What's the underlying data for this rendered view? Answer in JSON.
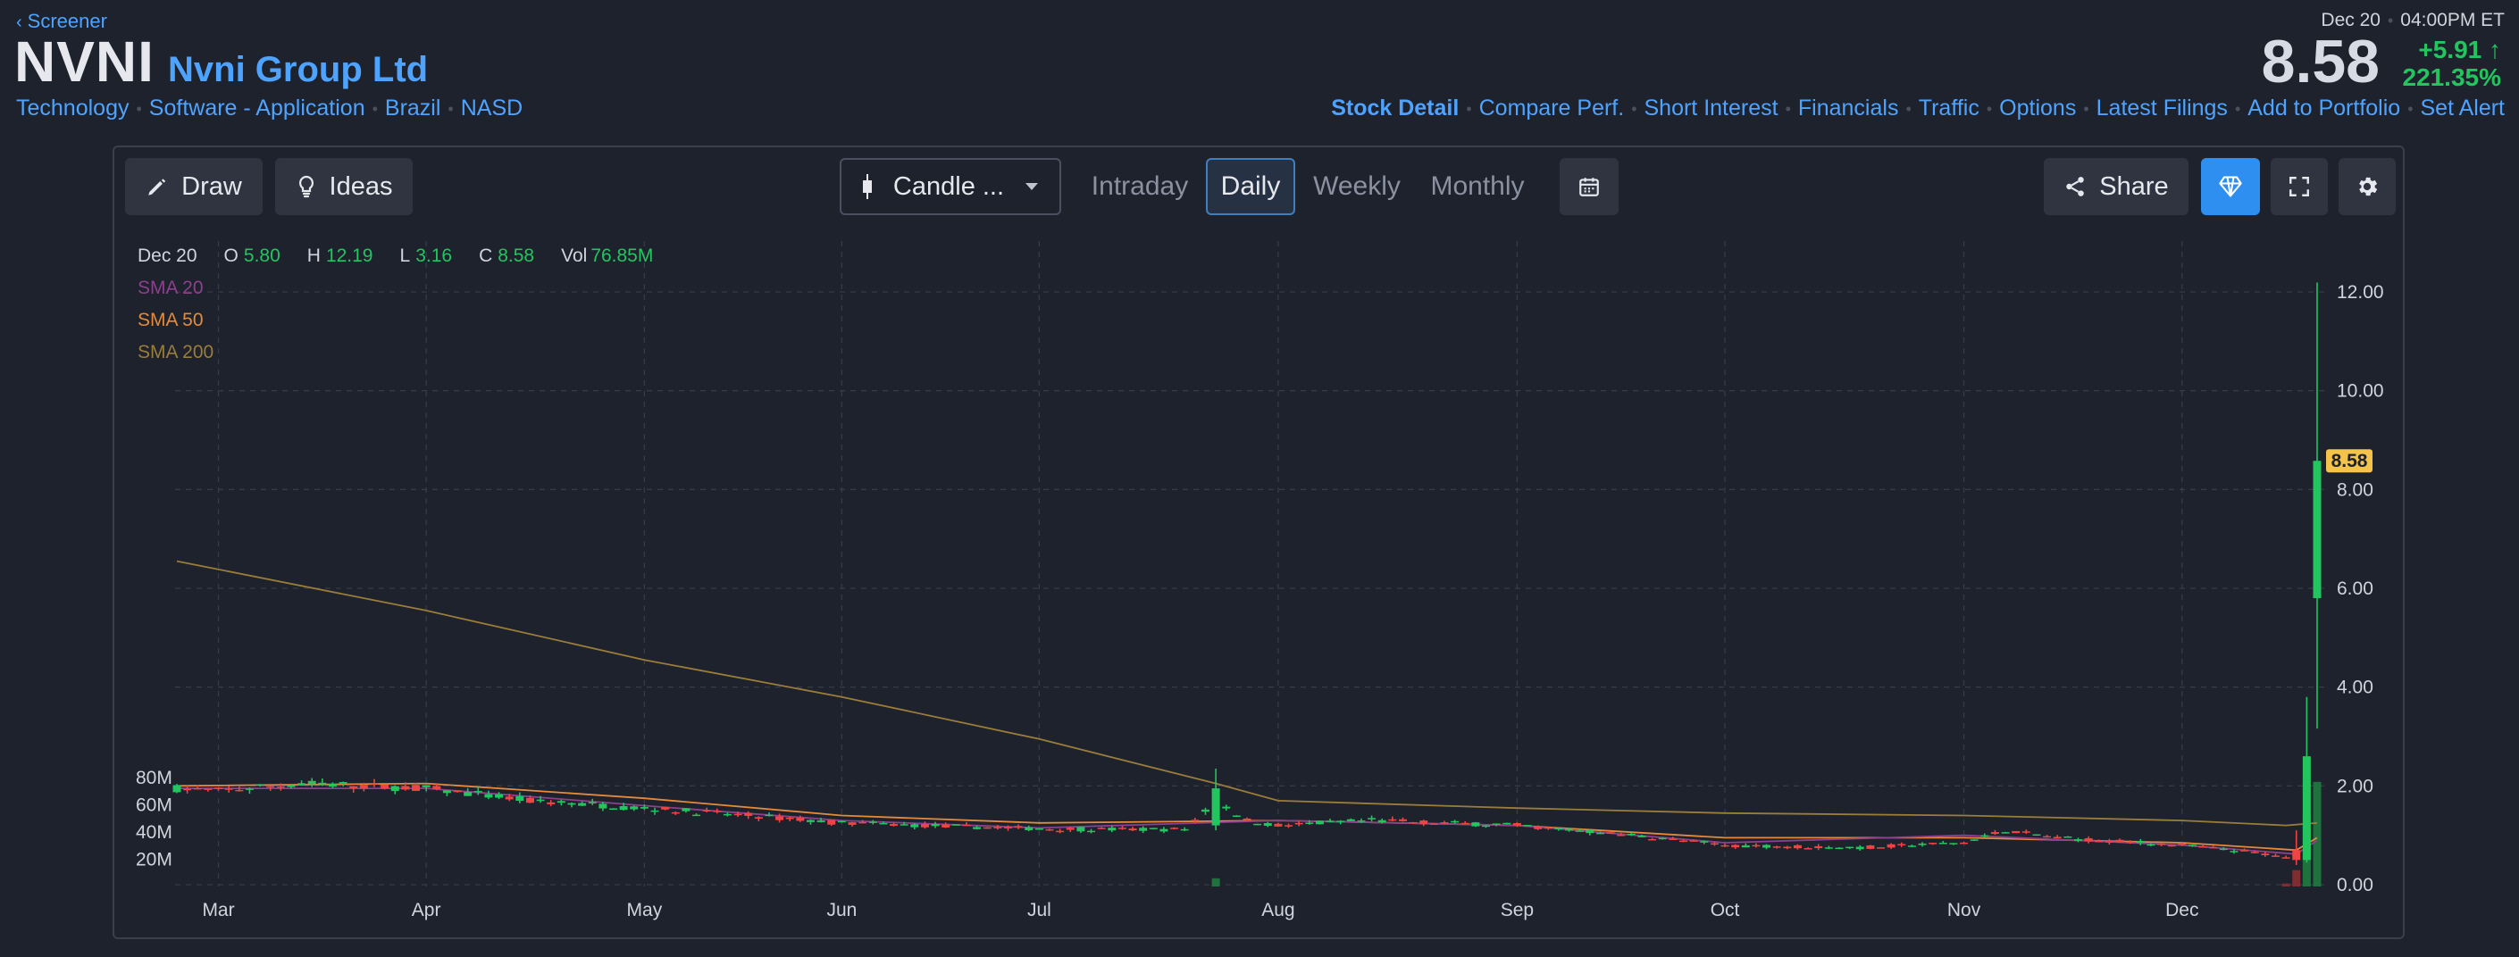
{
  "header": {
    "back_label": "Screener",
    "ticker": "NVNI",
    "company": "Nvni Group Ltd",
    "tags": [
      "Technology",
      "Software - Application",
      "Brazil",
      "NASD"
    ],
    "date": "Dec 20",
    "time": "04:00PM ET",
    "price": "8.58",
    "change": "+5.91",
    "change_pct": "221.35%",
    "nav": [
      "Stock Detail",
      "Compare Perf.",
      "Short Interest",
      "Financials",
      "Traffic",
      "Options",
      "Latest Filings",
      "Add to Portfolio",
      "Set Alert"
    ]
  },
  "toolbar": {
    "draw_label": "Draw",
    "ideas_label": "Ideas",
    "chart_type_label": "Candle ...",
    "timeframes": [
      "Intraday",
      "Daily",
      "Weekly",
      "Monthly"
    ],
    "active_timeframe": "Daily",
    "share_label": "Share"
  },
  "colors": {
    "up": "#22c55e",
    "down": "#ef4444",
    "sma20": "#8e3f8e",
    "sma50": "#e38a3c",
    "sma200": "#9a7d3a",
    "price_tag": "#f3c34a",
    "accent": "#4ea3ff"
  },
  "chart_data": {
    "type": "candlestick",
    "ohlc_legend": {
      "date": "Dec 20",
      "open_label": "O",
      "open": "5.80",
      "high_label": "H",
      "high": "12.19",
      "low_label": "L",
      "low": "3.16",
      "close_label": "C",
      "close": "8.58",
      "vol_label": "Vol",
      "volume": "76.85M"
    },
    "indicators": [
      {
        "name": "SMA 20",
        "color": "#8e3f8e"
      },
      {
        "name": "SMA 50",
        "color": "#e38a3c"
      },
      {
        "name": "SMA 200",
        "color": "#9a7d3a"
      }
    ],
    "x_tick_labels": [
      "Mar",
      "Apr",
      "May",
      "Jun",
      "Jul",
      "Aug",
      "Sep",
      "Oct",
      "Nov",
      "Dec"
    ],
    "y_tick_labels": [
      "12.00",
      "10.00",
      "8.00",
      "6.00",
      "4.00",
      "2.00",
      "0.00"
    ],
    "y_ticks": [
      12,
      10,
      8,
      6,
      4,
      2,
      0
    ],
    "ylim": [
      0,
      12.3
    ],
    "volume_tick_labels": [
      "80M",
      "60M",
      "40M",
      "20M"
    ],
    "volume_ticks": [
      80,
      60,
      40,
      20
    ],
    "volume_max": 80,
    "last_price_label": "8.58",
    "last_price": 8.58,
    "grid": true,
    "period": {
      "first_bar": 0,
      "last_bar": 206
    },
    "month_start_bars": [
      4,
      24,
      45,
      64,
      83,
      106,
      129,
      149,
      172,
      193
    ],
    "anchors": [
      [
        0,
        1.95
      ],
      [
        4,
        1.9
      ],
      [
        12,
        2.05
      ],
      [
        24,
        1.95
      ],
      [
        34,
        1.7
      ],
      [
        45,
        1.55
      ],
      [
        55,
        1.4
      ],
      [
        64,
        1.25
      ],
      [
        72,
        1.2
      ],
      [
        80,
        1.15
      ],
      [
        88,
        1.12
      ],
      [
        97,
        1.12
      ],
      [
        100,
        1.7
      ],
      [
        103,
        1.3
      ],
      [
        106,
        1.2
      ],
      [
        115,
        1.3
      ],
      [
        129,
        1.2
      ],
      [
        140,
        1.0
      ],
      [
        149,
        0.8
      ],
      [
        162,
        0.75
      ],
      [
        172,
        0.85
      ],
      [
        176,
        1.1
      ],
      [
        181,
        0.95
      ],
      [
        193,
        0.8
      ],
      [
        202,
        0.6
      ],
      [
        204,
        0.45
      ],
      [
        205,
        0.9
      ],
      [
        206,
        8.58
      ]
    ],
    "special_bars": [
      {
        "i": 100,
        "o": 1.2,
        "h": 2.35,
        "l": 1.1,
        "c": 1.95,
        "v": 6
      },
      {
        "i": 204,
        "o": 0.7,
        "h": 1.1,
        "l": 0.4,
        "c": 0.5,
        "v": 12
      },
      {
        "i": 205,
        "o": 0.5,
        "h": 3.8,
        "l": 0.45,
        "c": 2.6,
        "v": 50
      },
      {
        "i": 206,
        "o": 5.8,
        "h": 12.19,
        "l": 3.16,
        "c": 8.58,
        "v": 76.85
      }
    ],
    "sma200_points": [
      [
        0,
        6.55
      ],
      [
        24,
        5.55
      ],
      [
        45,
        4.55
      ],
      [
        64,
        3.8
      ],
      [
        83,
        2.95
      ],
      [
        100,
        2.05
      ],
      [
        106,
        1.7
      ],
      [
        129,
        1.55
      ],
      [
        149,
        1.45
      ],
      [
        172,
        1.4
      ],
      [
        193,
        1.3
      ],
      [
        203,
        1.2
      ],
      [
        206,
        1.25
      ]
    ],
    "sma50_points": [
      [
        0,
        2.0
      ],
      [
        24,
        2.05
      ],
      [
        45,
        1.75
      ],
      [
        64,
        1.4
      ],
      [
        83,
        1.25
      ],
      [
        106,
        1.3
      ],
      [
        129,
        1.2
      ],
      [
        149,
        0.95
      ],
      [
        172,
        0.95
      ],
      [
        193,
        0.85
      ],
      [
        204,
        0.7
      ],
      [
        206,
        0.95
      ]
    ],
    "sma20_points": [
      [
        0,
        1.95
      ],
      [
        24,
        1.95
      ],
      [
        45,
        1.6
      ],
      [
        64,
        1.3
      ],
      [
        83,
        1.15
      ],
      [
        106,
        1.3
      ],
      [
        129,
        1.2
      ],
      [
        149,
        0.85
      ],
      [
        172,
        1.0
      ],
      [
        193,
        0.8
      ],
      [
        204,
        0.62
      ],
      [
        206,
        0.9
      ]
    ]
  }
}
